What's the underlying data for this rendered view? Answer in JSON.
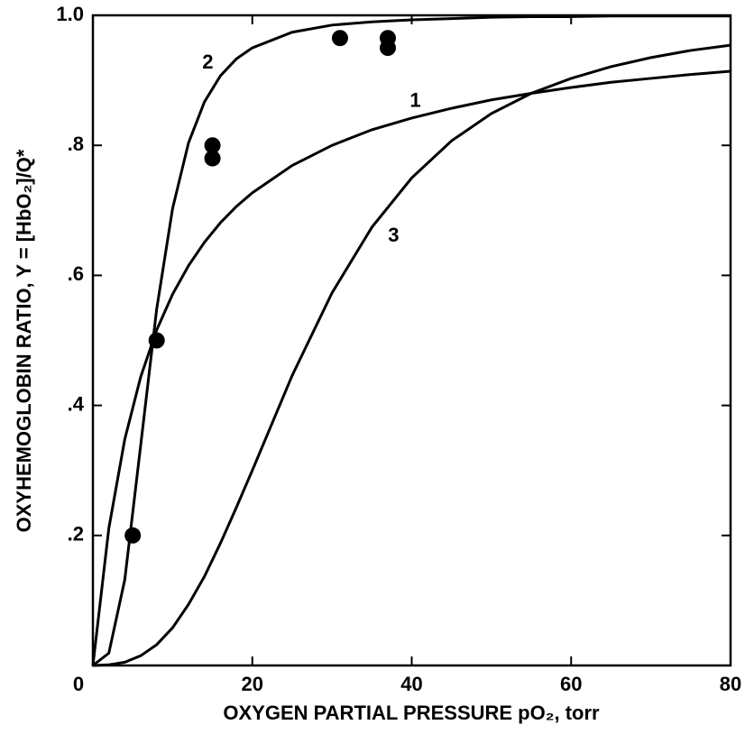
{
  "chart_data": {
    "type": "line",
    "x_label": "OXYGEN PARTIAL PRESSURE pO₂, torr",
    "y_label": "OXYHEMOGLOBIN RATIO, Y = [HbO₂]/Q*",
    "x": [
      0,
      2,
      4,
      6,
      8,
      10,
      12,
      14,
      16,
      18,
      20,
      25,
      30,
      35,
      40,
      45,
      50,
      55,
      60,
      65,
      70,
      75,
      80
    ],
    "series": [
      {
        "name": "1",
        "color": "#000000",
        "values": [
          0,
          0.211,
          0.348,
          0.444,
          0.516,
          0.571,
          0.615,
          0.651,
          0.681,
          0.706,
          0.727,
          0.769,
          0.8,
          0.824,
          0.842,
          0.857,
          0.87,
          0.88,
          0.889,
          0.897,
          0.903,
          0.909,
          0.914
        ]
      },
      {
        "name": "2",
        "color": "#000000",
        "values": [
          0,
          0.019,
          0.132,
          0.339,
          0.548,
          0.703,
          0.804,
          0.867,
          0.907,
          0.933,
          0.95,
          0.974,
          0.985,
          0.99,
          0.993,
          0.995,
          0.997,
          0.998,
          0.998,
          0.999,
          0.999,
          0.999,
          0.999
        ]
      },
      {
        "name": "3",
        "color": "#000000",
        "values": [
          0,
          0.001,
          0.005,
          0.015,
          0.032,
          0.058,
          0.094,
          0.137,
          0.188,
          0.243,
          0.3,
          0.446,
          0.573,
          0.674,
          0.75,
          0.807,
          0.849,
          0.88,
          0.903,
          0.921,
          0.935,
          0.946,
          0.954
        ]
      }
    ],
    "points": {
      "color": "#000000",
      "x": [
        5,
        8,
        15,
        15,
        31,
        37,
        37
      ],
      "y": [
        0.2,
        0.5,
        0.8,
        0.78,
        0.965,
        0.965,
        0.95
      ]
    },
    "xlim": [
      0,
      80
    ],
    "ylim": [
      0,
      1
    ],
    "xticks": [
      0,
      20,
      40,
      60,
      80
    ],
    "yticks": [
      {
        "value": 0.2,
        "label": ".2"
      },
      {
        "value": 0.4,
        "label": ".4"
      },
      {
        "value": 0.6,
        "label": ".6"
      },
      {
        "value": 0.8,
        "label": ".8"
      },
      {
        "value": 1,
        "label": "1.0"
      }
    ]
  }
}
